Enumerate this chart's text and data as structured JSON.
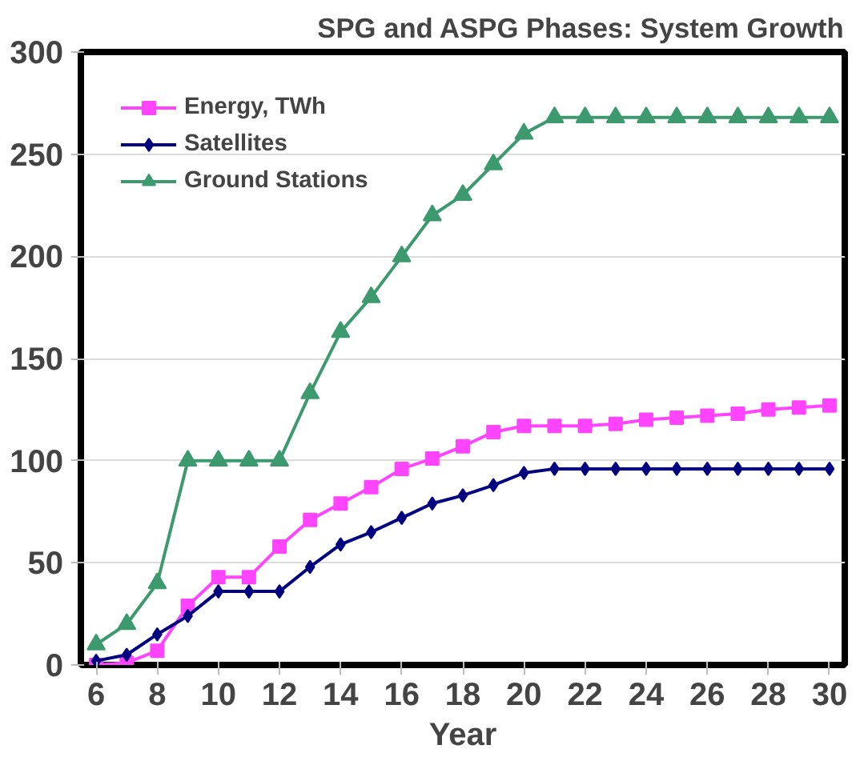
{
  "chart_data": {
    "type": "line",
    "title": "SPG and ASPG Phases: System Growth",
    "xlabel": "Year",
    "x": [
      6,
      7,
      8,
      9,
      10,
      11,
      12,
      13,
      14,
      15,
      16,
      17,
      18,
      19,
      20,
      21,
      22,
      23,
      24,
      25,
      26,
      27,
      28,
      29,
      30
    ],
    "series": [
      {
        "name": "Energy, TWh",
        "color": "#ff44ff",
        "marker": "square",
        "values": [
          0,
          1,
          7,
          29,
          43,
          43,
          58,
          71,
          79,
          87,
          96,
          101,
          107,
          114,
          117,
          117,
          117,
          118,
          120,
          121,
          122,
          123,
          125,
          126,
          127
        ]
      },
      {
        "name": "Satellites",
        "color": "#000080",
        "marker": "diamond",
        "values": [
          2,
          5,
          15,
          24,
          36,
          36,
          36,
          48,
          59,
          65,
          72,
          79,
          83,
          88,
          94,
          96,
          96,
          96,
          96,
          96,
          96,
          96,
          96,
          96,
          96
        ]
      },
      {
        "name": "Ground Stations",
        "color": "#3c9a6e",
        "marker": "triangle",
        "values": [
          10,
          20,
          40,
          100,
          100,
          100,
          100,
          133,
          163,
          180,
          200,
          220,
          230,
          245,
          260,
          268,
          268,
          268,
          268,
          268,
          268,
          268,
          268,
          268,
          268
        ]
      }
    ],
    "xlim": [
      5.5,
      30.5
    ],
    "xticks": [
      6,
      8,
      10,
      12,
      14,
      16,
      18,
      20,
      22,
      24,
      26,
      28,
      30
    ],
    "ylim": [
      0,
      300
    ],
    "yticks": [
      0,
      50,
      100,
      150,
      200,
      250,
      300
    ],
    "grid": "y",
    "legend": "top left"
  }
}
